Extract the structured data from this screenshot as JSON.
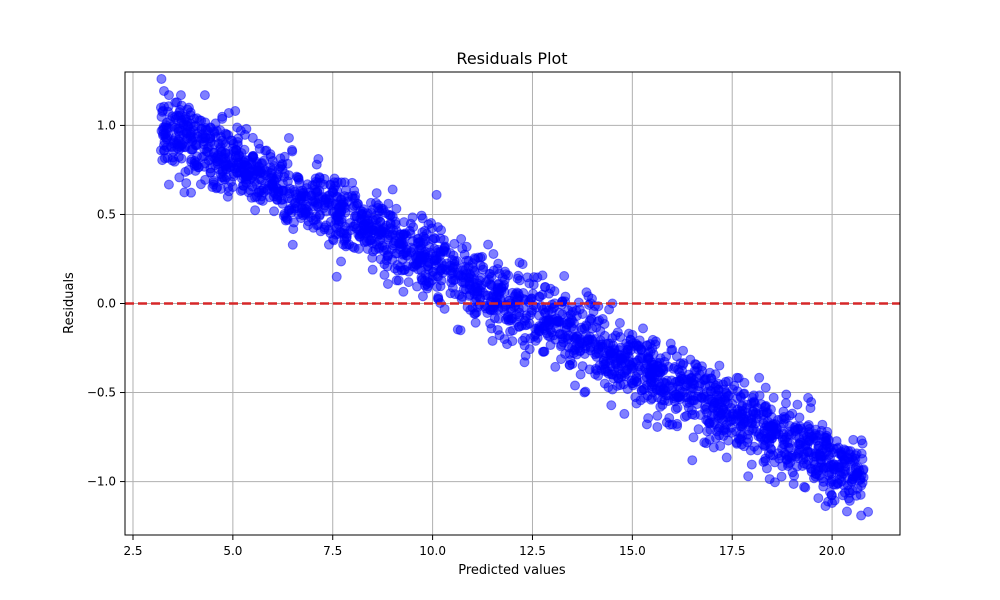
{
  "chart_data": {
    "type": "scatter",
    "title": "Residuals Plot",
    "xlabel": "Predicted values",
    "ylabel": "Residuals",
    "xlim": [
      2.3,
      21.7
    ],
    "ylim": [
      -1.3,
      1.3
    ],
    "xticks": [
      2.5,
      5.0,
      7.5,
      10.0,
      12.5,
      15.0,
      17.5,
      20.0
    ],
    "xtick_labels": [
      "2.5",
      "5.0",
      "7.5",
      "10.0",
      "12.5",
      "15.0",
      "17.5",
      "20.0"
    ],
    "yticks": [
      -1.0,
      -0.5,
      0.0,
      0.5,
      1.0
    ],
    "ytick_labels": [
      "−1.0",
      "−0.5",
      "0.0",
      "0.5",
      "1.0"
    ],
    "grid": true,
    "reference_line": {
      "y": 0.0,
      "style": "dashed",
      "color": "#d62728"
    },
    "marker_color": "#0000ff",
    "marker_alpha": 0.5,
    "trend": {
      "slope": -0.1125,
      "intercept": 1.35,
      "noise_sd": 0.1
    },
    "points": [
      [
        3.2,
        1.1
      ],
      [
        3.3,
        0.99
      ],
      [
        3.4,
        1.17
      ],
      [
        3.6,
        1.13
      ],
      [
        3.7,
        1.17
      ],
      [
        3.9,
        1.1
      ],
      [
        4.3,
        1.17
      ],
      [
        4.1,
        1.04
      ],
      [
        3.5,
        0.82
      ],
      [
        3.2,
        0.86
      ],
      [
        4.6,
        0.97
      ],
      [
        4.9,
        1.07
      ],
      [
        5.2,
        0.97
      ],
      [
        5.5,
        0.93
      ],
      [
        4.2,
        0.67
      ],
      [
        4.9,
        0.63
      ],
      [
        5.6,
        0.6
      ],
      [
        6.3,
        0.73
      ],
      [
        6.0,
        0.8
      ],
      [
        7.1,
        0.78
      ],
      [
        7.8,
        0.68
      ],
      [
        8.6,
        0.62
      ],
      [
        9.0,
        0.64
      ],
      [
        10.1,
        0.61
      ],
      [
        6.5,
        0.33
      ],
      [
        7.6,
        0.15
      ],
      [
        8.5,
        0.19
      ],
      [
        9.4,
        0.12
      ],
      [
        10.3,
        -0.03
      ],
      [
        10.7,
        -0.15
      ],
      [
        11.5,
        -0.21
      ],
      [
        12.3,
        -0.33
      ],
      [
        13.7,
        -0.2
      ],
      [
        14.5,
        0.0
      ],
      [
        15.4,
        -0.3
      ],
      [
        15.7,
        -0.58
      ],
      [
        16.5,
        -0.88
      ],
      [
        17.2,
        -0.8
      ],
      [
        18.1,
        -0.72
      ],
      [
        18.8,
        -0.65
      ],
      [
        19.4,
        -0.53
      ],
      [
        19.9,
        -0.81
      ],
      [
        20.3,
        -0.9
      ],
      [
        20.6,
        -0.92
      ],
      [
        20.9,
        -1.17
      ],
      [
        20.0,
        -1.12
      ],
      [
        19.3,
        -1.03
      ],
      [
        18.9,
        -0.9
      ],
      [
        17.9,
        -0.97
      ],
      [
        17.4,
        -0.77
      ],
      [
        16.8,
        -0.78
      ],
      [
        16.0,
        -0.68
      ],
      [
        14.8,
        -0.62
      ],
      [
        14.4,
        -0.47
      ],
      [
        13.8,
        -0.5
      ],
      [
        12.8,
        -0.27
      ],
      [
        11.8,
        -0.2
      ],
      [
        11.1,
        -0.05
      ],
      [
        10.5,
        0.2
      ],
      [
        9.7,
        0.27
      ],
      [
        8.9,
        0.5
      ],
      [
        8.1,
        0.42
      ],
      [
        7.3,
        0.55
      ],
      [
        6.7,
        0.58
      ],
      [
        5.8,
        0.75
      ],
      [
        5.1,
        0.78
      ],
      [
        4.4,
        0.88
      ],
      [
        3.7,
        0.97
      ],
      [
        12.0,
        0.06
      ],
      [
        13.1,
        -0.1
      ],
      [
        15.1,
        -0.42
      ],
      [
        16.2,
        -0.52
      ],
      [
        17.0,
        -0.55
      ],
      [
        18.3,
        -0.8
      ],
      [
        19.6,
        -0.86
      ],
      [
        20.4,
        -0.98
      ]
    ]
  }
}
